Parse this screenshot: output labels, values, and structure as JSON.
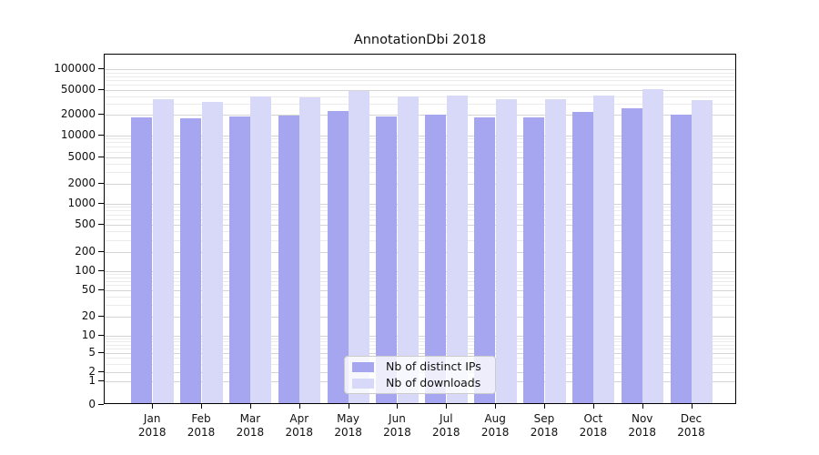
{
  "chart_data": {
    "type": "bar",
    "title": "AnnotationDbi 2018",
    "months": [
      "Jan",
      "Feb",
      "Mar",
      "Apr",
      "May",
      "Jun",
      "Jul",
      "Aug",
      "Sep",
      "Oct",
      "Nov",
      "Dec"
    ],
    "year": "2018",
    "series": [
      {
        "name": "Nb of distinct IPs",
        "color": "#a5a5f0",
        "values": [
          17200,
          16400,
          17800,
          18000,
          21100,
          17900,
          18800,
          17100,
          17100,
          20500,
          24000,
          18600
        ]
      },
      {
        "name": "Nb of downloads",
        "color": "#d8d8f8",
        "values": [
          33000,
          30300,
          36500,
          35800,
          44500,
          36300,
          38600,
          33000,
          33000,
          38600,
          48500,
          32200
        ]
      }
    ],
    "y_ticks": [
      0,
      1,
      2,
      5,
      10,
      20,
      50,
      100,
      200,
      500,
      1000,
      2000,
      5000,
      10000,
      20000,
      50000,
      100000
    ],
    "ylim": [
      0,
      160000
    ],
    "y_scale": "log",
    "grid": "on",
    "legend_position": "lower-center-inside"
  }
}
